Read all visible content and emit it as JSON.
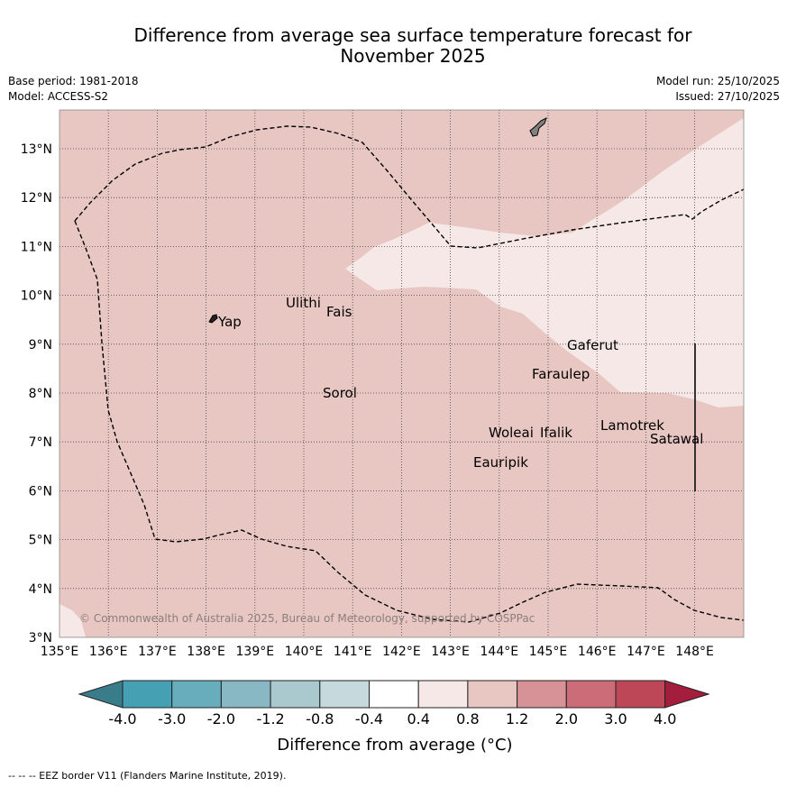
{
  "title_line1": "Difference from average sea surface temperature forecast for",
  "title_line2": "November 2025",
  "meta": {
    "base_period": "Base period: 1981-2018",
    "model": "Model: ACCESS-S2",
    "model_run": "Model run: 25/10/2025",
    "issued": "Issued: 27/10/2025"
  },
  "map": {
    "lon_labels": [
      "135°E",
      "136°E",
      "137°E",
      "138°E",
      "139°E",
      "140°E",
      "141°E",
      "142°E",
      "143°E",
      "144°E",
      "145°E",
      "146°E",
      "147°E",
      "148°E"
    ],
    "lat_labels": [
      "3°N",
      "4°N",
      "5°N",
      "6°N",
      "7°N",
      "8°N",
      "9°N",
      "10°N",
      "11°N",
      "12°N",
      "13°N"
    ],
    "places": {
      "yap": "Yap",
      "ulithi": "Ulithi",
      "fais": "Fais",
      "gaferut": "Gaferut",
      "faraulep": "Faraulep",
      "sorol": "Sorol",
      "lamotrek": "Lamotrek",
      "satawal": "Satawal",
      "woleai": "Woleai",
      "ifalik": "Ifalik",
      "eauripik": "Eauripik"
    },
    "copyright": "© Commonwealth of Australia 2025, Bureau of Meteorology, supported by COSPPac"
  },
  "colorbar": {
    "ticks": [
      "-4.0",
      "-3.0",
      "-2.0",
      "-1.2",
      "-0.8",
      "-0.4",
      "0.4",
      "0.8",
      "1.2",
      "2.0",
      "3.0",
      "4.0"
    ],
    "colors": {
      "under": "#3a7d8a",
      "c1": "#45a0b3",
      "c2": "#67adbb",
      "c3": "#88b8c3",
      "c4": "#a9c9cf",
      "c5": "#c6d9dc",
      "c6": "#ffffff",
      "c7": "#f5e8e7",
      "c8": "#e8c7c3",
      "c9": "#d69297",
      "c10": "#cc6c78",
      "c11": "#bd4757",
      "over": "#a51d3d"
    },
    "label": "Difference from average (°C)"
  },
  "footer": "--  --  -- EEZ border V11 (Flanders Marine Institute, 2019)."
}
